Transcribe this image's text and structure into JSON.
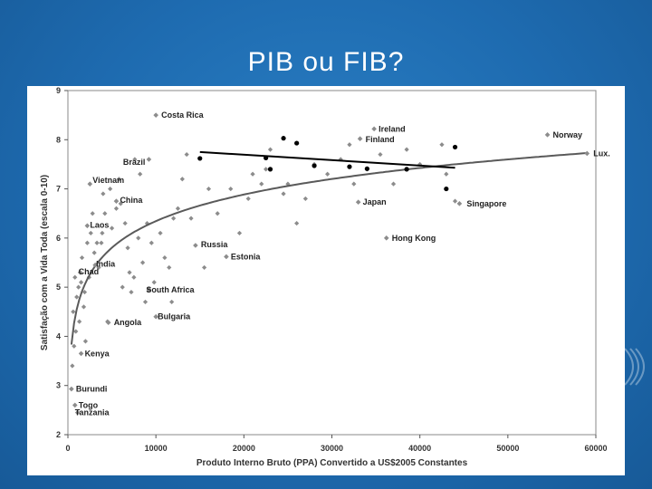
{
  "slide": {
    "title": "PIB ou FIB?"
  },
  "colors": {
    "background": "#1e6bb0",
    "points": "#8c8c8c",
    "trend": "#5a5a5a",
    "rich_points": "#000000",
    "rich_line": "#000000"
  },
  "chart_data": {
    "type": "scatter",
    "title": "",
    "xlabel": "Produto Interno Bruto (PPA) Convertido a US$2005 Constantes",
    "ylabel": "Satisfação com a Vida Toda (escala 0-10)",
    "xlim": [
      0,
      60000
    ],
    "ylim": [
      2,
      9
    ],
    "xticks": [
      0,
      10000,
      20000,
      30000,
      40000,
      50000,
      60000
    ],
    "yticks": [
      2,
      3,
      4,
      5,
      6,
      7,
      8,
      9
    ],
    "grid": false,
    "labeled_countries": [
      {
        "name": "Costa Rica",
        "x": 10000,
        "y": 8.5
      },
      {
        "name": "Brazil",
        "x": 9200,
        "y": 7.6
      },
      {
        "name": "Vietnam",
        "x": 2500,
        "y": 7.1
      },
      {
        "name": "China",
        "x": 5500,
        "y": 6.75
      },
      {
        "name": "Laos",
        "x": 2200,
        "y": 6.25
      },
      {
        "name": "Chad",
        "x": 1400,
        "y": 5.3
      },
      {
        "name": "India",
        "x": 3100,
        "y": 5.45
      },
      {
        "name": "Russia",
        "x": 14500,
        "y": 5.85
      },
      {
        "name": "Estonia",
        "x": 18000,
        "y": 5.62
      },
      {
        "name": "South Africa",
        "x": 9200,
        "y": 4.95
      },
      {
        "name": "Bulgaria",
        "x": 10000,
        "y": 4.4
      },
      {
        "name": "Angola",
        "x": 4600,
        "y": 4.28
      },
      {
        "name": "Kenya",
        "x": 1500,
        "y": 3.65
      },
      {
        "name": "Burundi",
        "x": 400,
        "y": 2.93
      },
      {
        "name": "Togo",
        "x": 800,
        "y": 2.6
      },
      {
        "name": "Tanzania",
        "x": 1100,
        "y": 2.45
      },
      {
        "name": "Ireland",
        "x": 34800,
        "y": 8.22
      },
      {
        "name": "Finland",
        "x": 33200,
        "y": 8.02
      },
      {
        "name": "Japan",
        "x": 33000,
        "y": 6.73
      },
      {
        "name": "Hong Kong",
        "x": 36200,
        "y": 6.0
      },
      {
        "name": "Singapore",
        "x": 44500,
        "y": 6.7
      },
      {
        "name": "Norway",
        "x": 54500,
        "y": 8.1
      },
      {
        "name": "Lux.",
        "x": 59000,
        "y": 7.72
      }
    ],
    "points": [
      [
        500,
        3.4
      ],
      [
        700,
        3.8
      ],
      [
        900,
        4.1
      ],
      [
        600,
        4.5
      ],
      [
        1000,
        4.8
      ],
      [
        1200,
        5.0
      ],
      [
        800,
        5.2
      ],
      [
        1500,
        5.1
      ],
      [
        1800,
        4.6
      ],
      [
        2000,
        3.9
      ],
      [
        1300,
        4.3
      ],
      [
        1600,
        5.6
      ],
      [
        2200,
        5.9
      ],
      [
        2600,
        6.1
      ],
      [
        3000,
        5.7
      ],
      [
        3500,
        5.4
      ],
      [
        3800,
        5.9
      ],
      [
        4200,
        6.5
      ],
      [
        4000,
        6.9
      ],
      [
        4800,
        7.0
      ],
      [
        5000,
        6.2
      ],
      [
        5500,
        6.6
      ],
      [
        6000,
        6.7
      ],
      [
        6500,
        6.3
      ],
      [
        7000,
        5.3
      ],
      [
        7500,
        5.2
      ],
      [
        6800,
        5.8
      ],
      [
        8000,
        6.0
      ],
      [
        8500,
        5.5
      ],
      [
        9000,
        6.3
      ],
      [
        9500,
        5.9
      ],
      [
        10500,
        6.1
      ],
      [
        11000,
        5.6
      ],
      [
        11500,
        5.4
      ],
      [
        12000,
        6.4
      ],
      [
        12500,
        6.6
      ],
      [
        13000,
        7.2
      ],
      [
        13500,
        7.7
      ],
      [
        14000,
        6.4
      ],
      [
        15500,
        5.4
      ],
      [
        16000,
        7.0
      ],
      [
        17000,
        6.5
      ],
      [
        18500,
        7.0
      ],
      [
        19500,
        6.1
      ],
      [
        20500,
        6.8
      ],
      [
        21000,
        7.3
      ],
      [
        22000,
        7.1
      ],
      [
        22500,
        7.4
      ],
      [
        23000,
        7.8
      ],
      [
        24500,
        6.9
      ],
      [
        25000,
        7.1
      ],
      [
        26000,
        6.3
      ],
      [
        27000,
        6.8
      ],
      [
        28000,
        7.5
      ],
      [
        29500,
        7.3
      ],
      [
        31000,
        7.6
      ],
      [
        32000,
        7.9
      ],
      [
        32500,
        7.1
      ],
      [
        34000,
        7.4
      ],
      [
        35500,
        7.7
      ],
      [
        37000,
        7.1
      ],
      [
        38500,
        7.8
      ],
      [
        40000,
        7.5
      ],
      [
        42500,
        7.9
      ],
      [
        43000,
        7.3
      ],
      [
        44000,
        6.75
      ],
      [
        2800,
        6.5
      ],
      [
        3300,
        5.9
      ],
      [
        1900,
        4.9
      ],
      [
        2400,
        5.2
      ],
      [
        4500,
        4.3
      ],
      [
        6200,
        5.0
      ],
      [
        7200,
        4.9
      ],
      [
        8800,
        4.7
      ],
      [
        9800,
        5.1
      ],
      [
        11800,
        4.7
      ],
      [
        7600,
        7.6
      ],
      [
        8200,
        7.3
      ],
      [
        5800,
        7.2
      ],
      [
        3900,
        6.1
      ]
    ],
    "rich_countries": [
      [
        15000,
        7.62
      ],
      [
        22500,
        7.63
      ],
      [
        23000,
        7.4
      ],
      [
        24500,
        8.03
      ],
      [
        26000,
        7.93
      ],
      [
        28000,
        7.47
      ],
      [
        32000,
        7.45
      ],
      [
        34000,
        7.41
      ],
      [
        38500,
        7.4
      ],
      [
        43000,
        7.0
      ],
      [
        44000,
        7.85
      ]
    ],
    "trend_curve": "logarithmic",
    "rich_trend": [
      [
        15000,
        7.75
      ],
      [
        44000,
        7.43
      ]
    ]
  }
}
